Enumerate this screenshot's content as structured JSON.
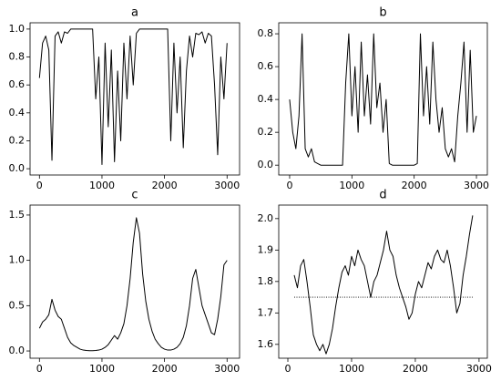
{
  "chart_data": [
    {
      "type": "line",
      "title": "a",
      "x": [
        0,
        50,
        100,
        150,
        200,
        250,
        300,
        350,
        400,
        450,
        500,
        550,
        600,
        650,
        700,
        750,
        800,
        850,
        900,
        950,
        1000,
        1050,
        1100,
        1150,
        1200,
        1250,
        1300,
        1350,
        1400,
        1450,
        1500,
        1550,
        1600,
        1650,
        1700,
        1750,
        1800,
        1850,
        1900,
        1950,
        2000,
        2050,
        2100,
        2150,
        2200,
        2250,
        2300,
        2350,
        2400,
        2450,
        2500,
        2550,
        2600,
        2650,
        2700,
        2750,
        2800,
        2850,
        2900,
        2950,
        3000
      ],
      "series": [
        {
          "color": "#000000",
          "values": [
            0.65,
            0.9,
            0.95,
            0.85,
            0.06,
            0.95,
            0.98,
            0.9,
            0.98,
            0.97,
            1,
            1,
            1,
            1,
            1,
            1,
            1,
            1,
            0.5,
            0.8,
            0.03,
            0.9,
            0.3,
            0.85,
            0.05,
            0.7,
            0.2,
            0.9,
            0.5,
            0.95,
            0.6,
            0.97,
            1,
            1,
            1,
            1,
            1,
            1,
            1,
            1,
            1,
            1,
            0.2,
            0.9,
            0.4,
            0.8,
            0.15,
            0.7,
            0.95,
            0.8,
            0.97,
            0.96,
            0.98,
            0.9,
            0.97,
            0.95,
            0.6,
            0.1,
            0.8,
            0.5,
            0.9
          ]
        }
      ],
      "xlim": [
        -150,
        3200
      ],
      "ylim": [
        -0.045,
        1.045
      ],
      "xticks": [
        0,
        1000,
        2000,
        3000
      ],
      "yticks": [
        {
          "value": 0,
          "label": "0.0"
        },
        0.2,
        0.4,
        0.6,
        0.8,
        {
          "value": 1,
          "label": "1.0"
        }
      ]
    },
    {
      "type": "line",
      "title": "b",
      "x": [
        0,
        50,
        100,
        150,
        200,
        250,
        300,
        350,
        400,
        450,
        500,
        550,
        600,
        650,
        700,
        750,
        800,
        850,
        900,
        950,
        1000,
        1050,
        1100,
        1150,
        1200,
        1250,
        1300,
        1350,
        1400,
        1450,
        1500,
        1550,
        1600,
        1650,
        1700,
        1750,
        1800,
        1850,
        1900,
        1950,
        2000,
        2050,
        2100,
        2150,
        2200,
        2250,
        2300,
        2350,
        2400,
        2450,
        2500,
        2550,
        2600,
        2650,
        2700,
        2750,
        2800,
        2850,
        2900,
        2950,
        3000
      ],
      "series": [
        {
          "color": "#000000",
          "values": [
            0.4,
            0.2,
            0.1,
            0.3,
            0.8,
            0.1,
            0.05,
            0.1,
            0.02,
            0.01,
            0,
            0,
            0,
            0,
            0,
            0,
            0,
            0,
            0.5,
            0.8,
            0.3,
            0.6,
            0.2,
            0.75,
            0.3,
            0.55,
            0.25,
            0.8,
            0.35,
            0.5,
            0.2,
            0.4,
            0.01,
            0,
            0,
            0,
            0,
            0,
            0,
            0,
            0,
            0.01,
            0.8,
            0.3,
            0.6,
            0.25,
            0.75,
            0.4,
            0.2,
            0.35,
            0.1,
            0.05,
            0.1,
            0.02,
            0.3,
            0.5,
            0.75,
            0.2,
            0.7,
            0.2,
            0.3
          ]
        }
      ],
      "xlim": [
        -175,
        3175
      ],
      "ylim": [
        -0.06,
        0.867
      ],
      "xticks": [
        0,
        1000,
        2000,
        3000
      ],
      "yticks": [
        {
          "value": 0,
          "label": "0.0"
        },
        0.2,
        0.4,
        0.6,
        0.8
      ]
    },
    {
      "type": "line",
      "title": "c",
      "x": [
        0,
        50,
        100,
        150,
        200,
        250,
        300,
        350,
        400,
        450,
        500,
        550,
        600,
        650,
        700,
        750,
        800,
        850,
        900,
        950,
        1000,
        1050,
        1100,
        1150,
        1200,
        1250,
        1300,
        1350,
        1400,
        1450,
        1500,
        1550,
        1600,
        1650,
        1700,
        1750,
        1800,
        1850,
        1900,
        1950,
        2000,
        2050,
        2100,
        2150,
        2200,
        2250,
        2300,
        2350,
        2400,
        2450,
        2500,
        2550,
        2600,
        2650,
        2700,
        2750,
        2800,
        2850,
        2900,
        2950,
        3000
      ],
      "series": [
        {
          "color": "#000000",
          "values": [
            0.25,
            0.32,
            0.35,
            0.4,
            0.57,
            0.45,
            0.38,
            0.35,
            0.25,
            0.15,
            0.09,
            0.06,
            0.04,
            0.02,
            0.01,
            0.005,
            0.003,
            0.003,
            0.005,
            0.01,
            0.02,
            0.04,
            0.07,
            0.12,
            0.17,
            0.13,
            0.2,
            0.3,
            0.5,
            0.8,
            1.2,
            1.47,
            1.3,
            0.85,
            0.55,
            0.35,
            0.22,
            0.13,
            0.08,
            0.04,
            0.02,
            0.01,
            0.01,
            0.02,
            0.04,
            0.08,
            0.15,
            0.28,
            0.5,
            0.8,
            0.9,
            0.7,
            0.5,
            0.4,
            0.3,
            0.2,
            0.18,
            0.35,
            0.6,
            0.95,
            1.0
          ]
        }
      ],
      "xlim": [
        -150,
        3200
      ],
      "ylim": [
        -0.08,
        1.61
      ],
      "xticks": [
        0,
        1000,
        2000,
        3000
      ],
      "yticks": [
        {
          "value": 0,
          "label": "0.0"
        },
        0.5,
        {
          "value": 1,
          "label": "1.0"
        },
        1.5
      ]
    },
    {
      "type": "line",
      "title": "d",
      "x": [
        100,
        150,
        200,
        250,
        300,
        350,
        400,
        450,
        500,
        550,
        600,
        650,
        700,
        750,
        800,
        850,
        900,
        950,
        1000,
        1050,
        1100,
        1150,
        1200,
        1250,
        1300,
        1350,
        1400,
        1450,
        1500,
        1550,
        1600,
        1650,
        1700,
        1750,
        1800,
        1850,
        1900,
        1950,
        2000,
        2050,
        2100,
        2150,
        2200,
        2250,
        2300,
        2350,
        2400,
        2450,
        2500,
        2550,
        2600,
        2650,
        2700,
        2750,
        2800,
        2850,
        2900
      ],
      "series": [
        {
          "color": "#000000",
          "values": [
            1.82,
            1.78,
            1.85,
            1.87,
            1.8,
            1.72,
            1.63,
            1.6,
            1.58,
            1.6,
            1.57,
            1.6,
            1.65,
            1.72,
            1.78,
            1.83,
            1.85,
            1.82,
            1.88,
            1.85,
            1.9,
            1.87,
            1.85,
            1.8,
            1.75,
            1.8,
            1.82,
            1.86,
            1.9,
            1.96,
            1.9,
            1.88,
            1.82,
            1.78,
            1.75,
            1.72,
            1.68,
            1.7,
            1.76,
            1.8,
            1.78,
            1.82,
            1.86,
            1.84,
            1.88,
            1.9,
            1.87,
            1.86,
            1.9,
            1.85,
            1.78,
            1.7,
            1.73,
            1.82,
            1.88,
            1.95,
            2.01
          ]
        }
      ],
      "hline": 1.75,
      "xlim": [
        -143,
        3130
      ],
      "ylim": [
        1.556,
        2.043
      ],
      "xticks": [
        0,
        1000,
        2000,
        3000
      ],
      "yticks": [
        1.6,
        1.7,
        1.8,
        1.9,
        {
          "value": 2,
          "label": "2.0"
        }
      ]
    }
  ]
}
